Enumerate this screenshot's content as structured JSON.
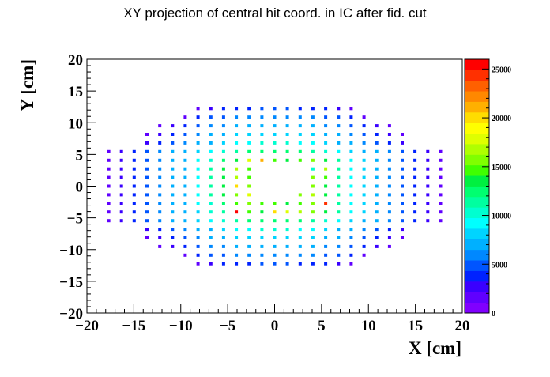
{
  "chart_data": {
    "type": "heatmap",
    "title": "XY projection of central hit coord. in IC after fid. cut",
    "xlabel": "X [cm]",
    "ylabel": "Y [cm]",
    "xlim": [
      -20,
      20
    ],
    "ylim": [
      -20,
      20
    ],
    "x_ticks": [
      -20,
      -15,
      -10,
      -5,
      0,
      5,
      10,
      15,
      20
    ],
    "x_tick_labels": [
      "−20",
      "−15",
      "−10",
      "−5",
      "0",
      "5",
      "10",
      "15",
      "20"
    ],
    "y_ticks": [
      -20,
      -15,
      -10,
      -5,
      0,
      5,
      10,
      15,
      20
    ],
    "y_tick_labels": [
      "−20",
      "−15",
      "−10",
      "−5",
      "0",
      "5",
      "10",
      "15",
      "20"
    ],
    "zlim": [
      0,
      26000
    ],
    "z_ticks": [
      0,
      5000,
      10000,
      15000,
      20000,
      25000
    ],
    "z_tick_labels": [
      "0",
      "5000",
      "10000",
      "15000",
      "20000",
      "25000"
    ],
    "palette": [
      "#8000ff",
      "#6000ff",
      "#3a00ff",
      "#0022ff",
      "#0055ff",
      "#0088ff",
      "#00b0ff",
      "#00d4ff",
      "#00ffff",
      "#00ffd0",
      "#00ffa0",
      "#00ff70",
      "#00f040",
      "#40ff00",
      "#80ff00",
      "#b0ff00",
      "#dfff00",
      "#ffff00",
      "#ffdd00",
      "#ffb000",
      "#ff8800",
      "#ff6000",
      "#ff3000",
      "#ff0000"
    ],
    "cell_pitch_cm": 1.36,
    "grid_columns": 23,
    "grid_rows": 19,
    "cells": [
      {
        "row": -9,
        "cols": [
          -6,
          -5,
          -4,
          -3,
          -2,
          -1,
          0,
          1,
          2,
          3,
          4,
          5,
          6
        ],
        "values": [
          2000,
          3000,
          3500,
          3500,
          4000,
          4500,
          4500,
          4500,
          4000,
          3500,
          3500,
          3000,
          2000
        ]
      },
      {
        "row": -8,
        "cols": [
          -7,
          -6,
          -5,
          -4,
          -3,
          -2,
          -1,
          0,
          1,
          2,
          3,
          4,
          5,
          6,
          7
        ],
        "values": [
          2000,
          3500,
          4500,
          5000,
          5500,
          5500,
          6000,
          6000,
          6000,
          5500,
          5500,
          5000,
          4500,
          3500,
          2000
        ]
      },
      {
        "row": -7,
        "cols": [
          -9,
          -8,
          -7,
          -6,
          -5,
          -4,
          -3,
          -2,
          -1,
          0,
          1,
          2,
          3,
          4,
          5,
          6,
          7,
          8,
          9
        ],
        "values": [
          2000,
          3000,
          4000,
          5000,
          5500,
          6000,
          6500,
          7000,
          7000,
          7000,
          7000,
          7000,
          6500,
          6000,
          5500,
          5000,
          4000,
          3000,
          2000
        ]
      },
      {
        "row": -6,
        "cols": [
          -10,
          -9,
          -8,
          -7,
          -6,
          -5,
          -4,
          -3,
          -2,
          -1,
          0,
          1,
          2,
          3,
          4,
          5,
          6,
          7,
          8,
          9,
          10
        ],
        "values": [
          2000,
          3000,
          4000,
          5000,
          6000,
          7000,
          7500,
          8000,
          8000,
          8500,
          8500,
          8500,
          8000,
          8000,
          7500,
          7000,
          6000,
          5000,
          4000,
          3000,
          2000
        ]
      },
      {
        "row": -5,
        "cols": [
          -10,
          -9,
          -8,
          -7,
          -6,
          -5,
          -4,
          -3,
          -2,
          -1,
          0,
          1,
          2,
          3,
          4,
          5,
          6,
          7,
          8,
          9,
          10
        ],
        "values": [
          2500,
          3500,
          4500,
          5500,
          6500,
          7500,
          8500,
          9000,
          9500,
          10000,
          10000,
          10000,
          9500,
          9000,
          8500,
          7500,
          6500,
          5500,
          4500,
          3500,
          2500
        ]
      },
      {
        "row": -4,
        "cols": [
          -13,
          -12,
          -11,
          -10,
          -9,
          -8,
          -7,
          -6,
          -5,
          -4,
          -3,
          -2,
          -1,
          0,
          1,
          2,
          3,
          4,
          5,
          6,
          7,
          8,
          9,
          10,
          11,
          12,
          13
        ],
        "values": [
          1500,
          2500,
          3500,
          4500,
          5500,
          6500,
          7500,
          8500,
          9500,
          10500,
          11500,
          12000,
          12000,
          12000,
          12000,
          12000,
          11500,
          10500,
          9500,
          8500,
          7500,
          6500,
          5500,
          4500,
          3500,
          2500,
          1500
        ]
      },
      {
        "row": -3,
        "cols": [
          -13,
          -12,
          -11,
          -10,
          -9,
          -8,
          -7,
          -6,
          -5,
          -4,
          -3,
          -2,
          -1,
          0,
          1,
          2,
          3,
          4,
          5,
          6,
          7,
          8,
          9,
          10,
          11,
          12,
          13
        ],
        "values": [
          1500,
          2500,
          3500,
          4500,
          5500,
          6500,
          7500,
          8500,
          10000,
          11500,
          26000,
          15000,
          14000,
          20000,
          18000,
          17000,
          16000,
          13500,
          11000,
          9500,
          8000,
          6500,
          5500,
          4500,
          3500,
          2500,
          1500
        ]
      },
      {
        "row": -2,
        "cols": [
          -13,
          -12,
          -11,
          -10,
          -9,
          -8,
          -7,
          -6,
          -5,
          -4,
          -3,
          -2,
          -1,
          0,
          1,
          2,
          3,
          4,
          5,
          6,
          7,
          8,
          9,
          10,
          11,
          12,
          13
        ],
        "values": [
          1500,
          2500,
          3500,
          4500,
          5500,
          6500,
          7500,
          9000,
          10500,
          12500,
          14500,
          16000,
          15000,
          14500,
          14000,
          15000,
          16000,
          24000,
          11500,
          9500,
          8000,
          6500,
          5500,
          4500,
          3500,
          2500,
          1500
        ]
      },
      {
        "row": -1,
        "cols": [
          -13,
          -12,
          -11,
          -10,
          -9,
          -8,
          -7,
          -6,
          -5,
          -4,
          -3,
          -2,
          2,
          3,
          4,
          5,
          6,
          7,
          8,
          9,
          10,
          11,
          12,
          13
        ],
        "values": [
          1500,
          2500,
          3500,
          4500,
          5500,
          6500,
          7500,
          9000,
          11000,
          13000,
          16000,
          18000,
          15500,
          17000,
          14000,
          11500,
          9500,
          8000,
          6500,
          5500,
          4500,
          3500,
          2500,
          1500
        ]
      },
      {
        "row": 0,
        "cols": [
          -13,
          -12,
          -11,
          -10,
          -9,
          -8,
          -7,
          -6,
          -5,
          -4,
          -3,
          -2,
          3,
          4,
          5,
          6,
          7,
          8,
          9,
          10,
          11,
          12,
          13
        ],
        "values": [
          1500,
          2500,
          3500,
          4500,
          5500,
          6500,
          7500,
          9000,
          11000,
          13000,
          20000,
          15500,
          16000,
          14000,
          11500,
          9500,
          8000,
          6500,
          5500,
          4500,
          3500,
          2500,
          1500
        ]
      },
      {
        "row": 1,
        "cols": [
          -13,
          -12,
          -11,
          -10,
          -9,
          -8,
          -7,
          -6,
          -5,
          -4,
          -3,
          -2,
          3,
          4,
          5,
          6,
          7,
          8,
          9,
          10,
          11,
          12,
          13
        ],
        "values": [
          1500,
          2500,
          3500,
          4500,
          5500,
          6500,
          7500,
          9000,
          11000,
          13000,
          16500,
          15000,
          15500,
          14500,
          11500,
          9500,
          8000,
          6500,
          5500,
          4500,
          3500,
          2500,
          1500
        ]
      },
      {
        "row": 2,
        "cols": [
          -13,
          -12,
          -11,
          -10,
          -9,
          -8,
          -7,
          -6,
          -5,
          -4,
          -3,
          -2,
          3,
          4,
          5,
          6,
          7,
          8,
          9,
          10,
          11,
          12,
          13
        ],
        "values": [
          1500,
          2500,
          3500,
          4500,
          5500,
          6500,
          7500,
          9000,
          11000,
          13000,
          17000,
          15000,
          10500,
          16500,
          11500,
          9500,
          8000,
          6500,
          5500,
          4500,
          3500,
          2500,
          1500
        ]
      },
      {
        "row": 3,
        "cols": [
          -13,
          -12,
          -11,
          -10,
          -9,
          -8,
          -7,
          -6,
          -5,
          -4,
          -3,
          -2,
          -1,
          0,
          1,
          2,
          3,
          4,
          5,
          6,
          7,
          8,
          9,
          10,
          11,
          12,
          13
        ],
        "values": [
          1500,
          2500,
          3500,
          4500,
          5500,
          6500,
          7500,
          9000,
          10500,
          12500,
          13500,
          18000,
          21000,
          14500,
          14000,
          15000,
          15500,
          13000,
          11000,
          9500,
          8000,
          6500,
          5500,
          4500,
          3500,
          2500,
          1500
        ]
      },
      {
        "row": 4,
        "cols": [
          -13,
          -12,
          -11,
          -10,
          -9,
          -8,
          -7,
          -6,
          -5,
          -4,
          -3,
          -2,
          -1,
          0,
          1,
          2,
          3,
          4,
          5,
          6,
          7,
          8,
          9,
          10,
          11,
          12,
          13
        ],
        "values": [
          1500,
          2500,
          3500,
          4500,
          5500,
          6500,
          7500,
          8500,
          9500,
          10500,
          11500,
          12000,
          12500,
          12500,
          12500,
          12000,
          11500,
          10500,
          9500,
          8500,
          7500,
          6500,
          5500,
          4500,
          3500,
          2500,
          1500
        ]
      },
      {
        "row": 5,
        "cols": [
          -10,
          -9,
          -8,
          -7,
          -6,
          -5,
          -4,
          -3,
          -2,
          -1,
          0,
          1,
          2,
          3,
          4,
          5,
          6,
          7,
          8,
          9,
          10
        ],
        "values": [
          2500,
          3500,
          4500,
          5500,
          6500,
          7500,
          8500,
          9000,
          9500,
          10000,
          10000,
          10000,
          9500,
          9000,
          8500,
          7500,
          6500,
          5500,
          4500,
          3500,
          2500
        ]
      },
      {
        "row": 6,
        "cols": [
          -10,
          -9,
          -8,
          -7,
          -6,
          -5,
          -4,
          -3,
          -2,
          -1,
          0,
          1,
          2,
          3,
          4,
          5,
          6,
          7,
          8,
          9,
          10
        ],
        "values": [
          2000,
          3000,
          4000,
          5000,
          6000,
          7000,
          7500,
          8000,
          8000,
          8500,
          8500,
          8500,
          8000,
          8000,
          7500,
          7000,
          6000,
          5000,
          4000,
          3000,
          2000
        ]
      },
      {
        "row": 7,
        "cols": [
          -9,
          -8,
          -7,
          -6,
          -5,
          -4,
          -3,
          -2,
          -1,
          0,
          1,
          2,
          3,
          4,
          5,
          6,
          7,
          8,
          9
        ],
        "values": [
          2000,
          3000,
          4000,
          5000,
          5500,
          6000,
          6500,
          7000,
          7000,
          7000,
          7000,
          7000,
          6500,
          6000,
          5500,
          5000,
          4000,
          3000,
          2000
        ]
      },
      {
        "row": 8,
        "cols": [
          -7,
          -6,
          -5,
          -4,
          -3,
          -2,
          -1,
          0,
          1,
          2,
          3,
          4,
          5,
          6,
          7
        ],
        "values": [
          2000,
          3500,
          4500,
          5000,
          5500,
          5500,
          6000,
          6000,
          6000,
          5500,
          5500,
          5000,
          4500,
          3500,
          2000
        ]
      },
      {
        "row": 9,
        "cols": [
          -6,
          -5,
          -4,
          -3,
          -2,
          -1,
          0,
          1,
          2,
          3,
          4,
          5,
          6
        ],
        "values": [
          2000,
          3000,
          3500,
          3500,
          4000,
          4500,
          4500,
          4500,
          4000,
          3500,
          3500,
          3000,
          2000
        ]
      }
    ]
  }
}
